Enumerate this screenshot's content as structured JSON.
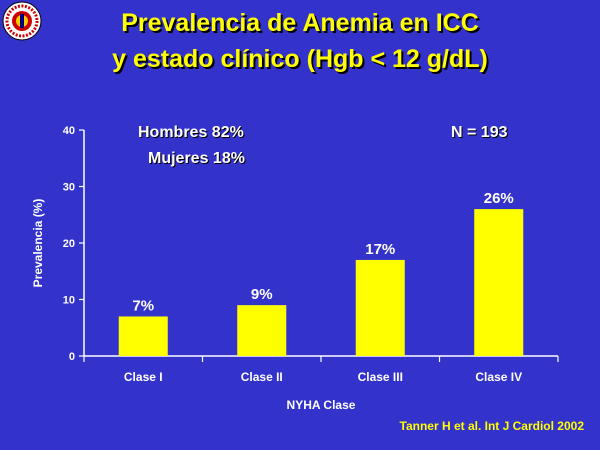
{
  "title_line1": "Prevalencia de Anemia en ICC",
  "title_line2": "y estado clínico (Hgb < 12 g/dL)",
  "annotations": {
    "hombres": "Hombres 82%",
    "mujeres": "Mujeres 18%",
    "n": "N = 193"
  },
  "citation": "Tanner H et al. Int J Cardiol 2002",
  "colors": {
    "background": "#3333cc",
    "bar": "#ffff00",
    "title": "#ffff00",
    "text": "#ffffff"
  },
  "logo_icon": "university-seal-icon",
  "chart_data": {
    "type": "bar",
    "categories": [
      "Clase I",
      "Clase II",
      "Clase III",
      "Clase IV"
    ],
    "values": [
      7,
      9,
      17,
      26
    ],
    "data_labels": [
      "7%",
      "9%",
      "17%",
      "26%"
    ],
    "xlabel": "NYHA Clase",
    "ylabel": "Prevalencia (%)",
    "ylim": [
      0,
      40
    ],
    "yticks": [
      0,
      10,
      20,
      30,
      40
    ],
    "grid": false,
    "legend": "none"
  }
}
